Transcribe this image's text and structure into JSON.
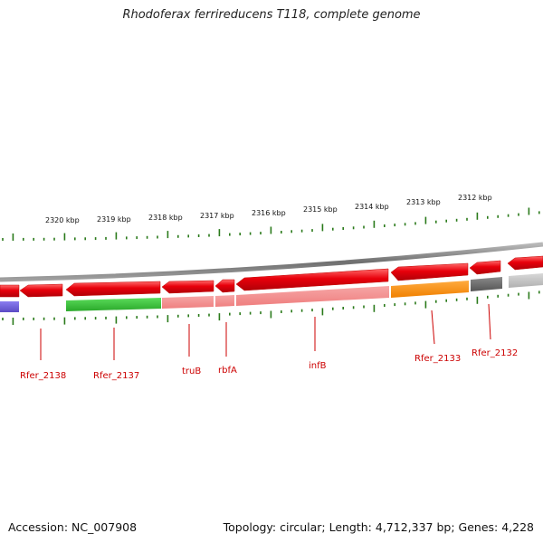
{
  "title": "Rhodoferax ferrireducens T118, complete genome",
  "footer": {
    "accession": "Accession: NC_007908",
    "summary": "Topology: circular; Length: 4,712,337 bp; Genes: 4,228"
  },
  "scale_labels": [
    "2320 kbp",
    "2319 kbp",
    "2318 kbp",
    "2317 kbp",
    "2316 kbp",
    "2315 kbp",
    "2314 kbp",
    "2313 kbp",
    "2312 kbp"
  ],
  "gene_labels": [
    "Rfer_2138",
    "Rfer_2137",
    "truB",
    "rbfA",
    "infB",
    "Rfer_2133",
    "Rfer_2132"
  ],
  "colors": {
    "backbone": "#8a8a8a",
    "gene_red": "#e8000b",
    "gene_pink": "#f28b8b",
    "gene_green": "#3cc23c",
    "gene_orange": "#ff8c00",
    "gene_gray": "#6b6b6b",
    "gene_lightgray": "#c0c0c0",
    "gene_purple": "#6a5acd",
    "tick_green": "#2a7a1a",
    "label_red": "#cc0000"
  }
}
